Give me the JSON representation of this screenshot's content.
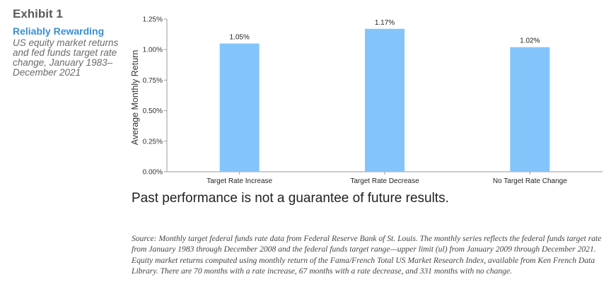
{
  "exhibit": {
    "number": "Exhibit 1",
    "title": "Reliably Rewarding",
    "subtitle": "US equity market returns and fed funds target rate change, January 1983–December 2021"
  },
  "chart_data": {
    "type": "bar",
    "categories": [
      "Target Rate Increase",
      "Target Rate Decrease",
      "No Target Rate Change"
    ],
    "values": [
      1.05,
      1.17,
      1.02
    ],
    "value_labels": [
      "1.05%",
      "1.17%",
      "1.02%"
    ],
    "ylabel": "Average Monthly Return",
    "xlabel": "",
    "ylim": [
      0,
      1.25
    ],
    "yticks": [
      0,
      0.25,
      0.5,
      0.75,
      1.0,
      1.25
    ],
    "ytick_labels": [
      "0.00%",
      "0.25%",
      "0.50%",
      "0.75%",
      "1.00%",
      "1.25%"
    ],
    "grid": false,
    "bar_color": "#83c5fb"
  },
  "disclaimer": "Past performance is not a guarantee of future results.",
  "source": "Source: Monthly target federal funds rate data from Federal Reserve Bank of St. Louis. The monthly series reflects the federal funds target rate from January 1983 through December 2008 and the federal funds target range—upper limit (ul) from January 2009 through December 2021. Equity market returns computed using monthly return of the Fama/French Total US Market Research Index, available from Ken French Data Library. There are 70 months with a rate increase, 67 months with a rate decrease, and 331 months with no change."
}
